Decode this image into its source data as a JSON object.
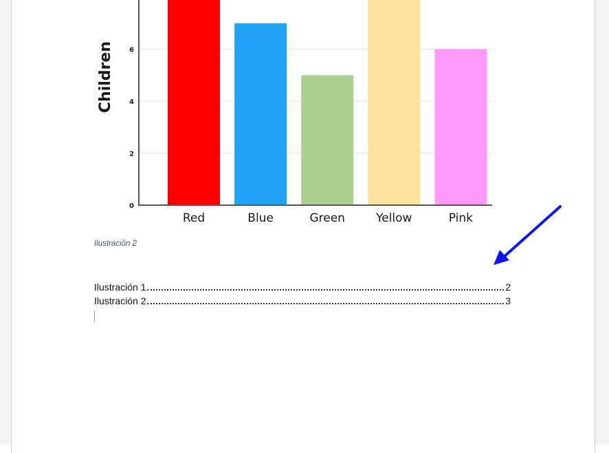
{
  "document": {
    "caption": "Ilustración 2",
    "table_of_figures": [
      {
        "label": "Ilustración 1",
        "page": "2"
      },
      {
        "label": "Ilustración 2",
        "page": "3"
      }
    ]
  },
  "annotation": {
    "arrow_color": "#0a14ff"
  },
  "chart_data": {
    "type": "bar",
    "title": "",
    "xlabel": "",
    "ylabel": "Children",
    "categories": [
      "Red",
      "Blue",
      "Green",
      "Yellow",
      "Pink"
    ],
    "values": [
      8,
      7,
      5,
      8,
      6
    ],
    "colors": [
      "#ff0000",
      "#21a4f6",
      "#acd18f",
      "#ffe39a",
      "#ff99fb"
    ],
    "ylim": [
      0,
      8
    ],
    "yticks": [
      0,
      2,
      4,
      6,
      8
    ],
    "grid": true
  }
}
